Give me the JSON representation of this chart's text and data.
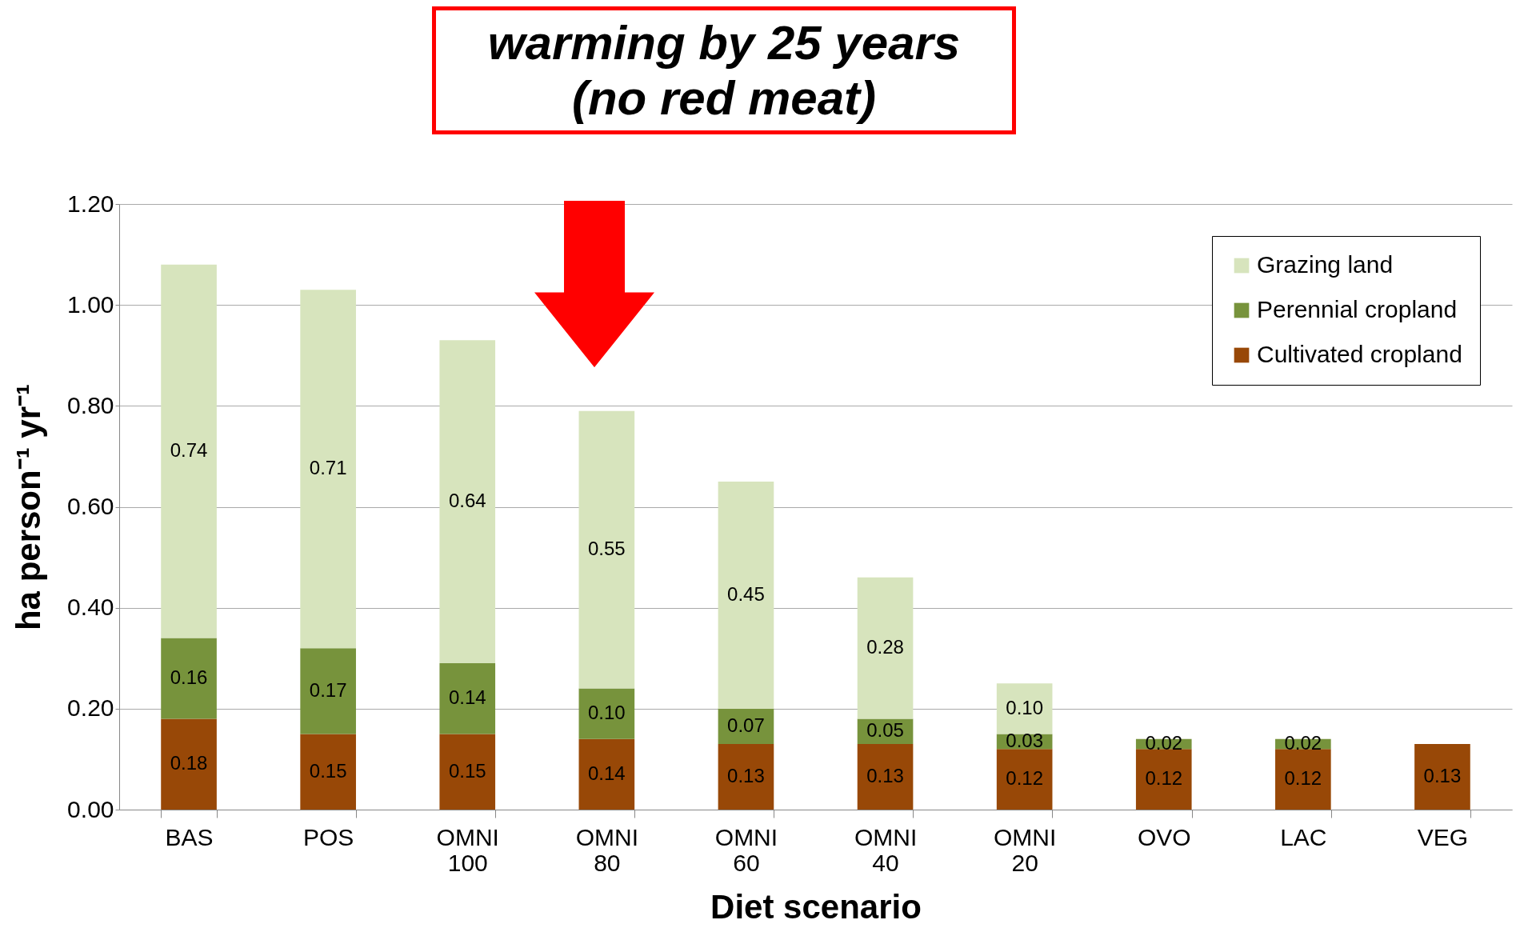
{
  "chart_data": {
    "type": "bar",
    "stacked": true,
    "xlabel": "Diet scenario",
    "ylabel": "ha person⁻¹ yr⁻¹",
    "categories": [
      "BAS",
      "POS",
      "OMNI 100",
      "OMNI 80",
      "OMNI 60",
      "OMNI 40",
      "OMNI 20",
      "OVO",
      "LAC",
      "VEG"
    ],
    "series": [
      {
        "name": "Cultivated cropland",
        "color": "#984807",
        "values": [
          0.18,
          0.15,
          0.15,
          0.14,
          0.13,
          0.13,
          0.12,
          0.12,
          0.12,
          0.13
        ],
        "value_labels": [
          "0.18",
          "0.15",
          "0.15",
          "0.14",
          "0.13",
          "0.13",
          "0.12",
          "0.12",
          "0.12",
          "0.13"
        ]
      },
      {
        "name": "Perennial cropland",
        "color": "#77933c",
        "values": [
          0.16,
          0.17,
          0.14,
          0.1,
          0.07,
          0.05,
          0.03,
          0.02,
          0.02,
          null
        ],
        "value_labels": [
          "0.16",
          "0.17",
          "0.14",
          "0.10",
          "0.07",
          "0.05",
          "0.03",
          "0.02",
          "0.02",
          null
        ]
      },
      {
        "name": "Grazing land",
        "color": "#d7e4bd",
        "values": [
          0.74,
          0.71,
          0.64,
          0.55,
          0.45,
          0.28,
          0.1,
          null,
          null,
          null
        ],
        "value_labels": [
          "0.74",
          "0.71",
          "0.64",
          "0.55",
          "0.45",
          "0.28",
          "0.10",
          null,
          null,
          null
        ]
      }
    ],
    "ylim": [
      0,
      1.2
    ],
    "yticks": [
      {
        "value": 0,
        "label": "0.00"
      },
      {
        "value": 0.2,
        "label": "0.20"
      },
      {
        "value": 0.4,
        "label": "0.40"
      },
      {
        "value": 0.6,
        "label": "0.60"
      },
      {
        "value": 0.8,
        "label": "0.80"
      },
      {
        "value": 1.0,
        "label": "1.00"
      },
      {
        "value": 1.2,
        "label": "1.20"
      }
    ],
    "grid": "y",
    "legend": "top right",
    "annotations": [
      "warming by 25 years",
      "(no red meat)"
    ]
  }
}
